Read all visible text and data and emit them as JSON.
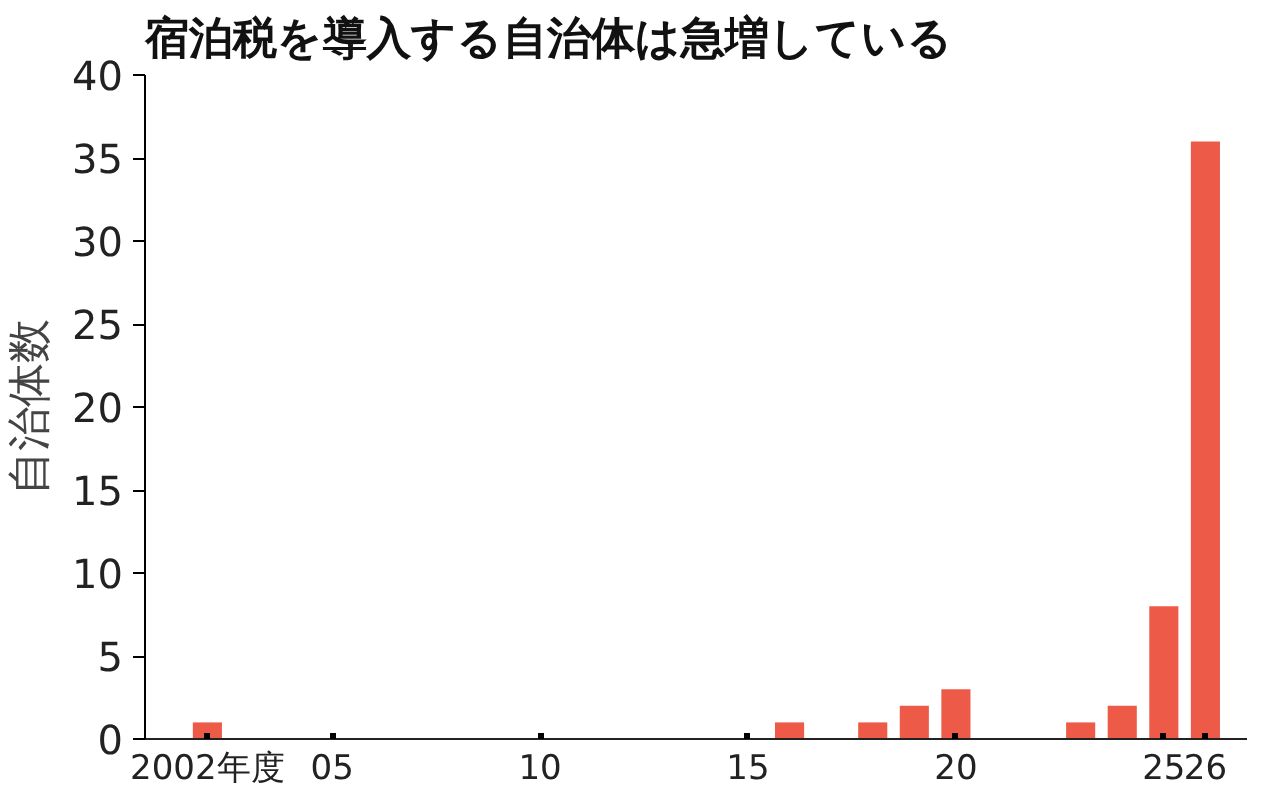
{
  "chart_data": {
    "type": "bar",
    "title": "宿泊税を導入する自治体は急増している",
    "ylabel": "自治体数",
    "x": [
      2002,
      2016,
      2018,
      2019,
      2020,
      2023,
      2024,
      2025,
      2026
    ],
    "values": [
      1,
      1,
      1,
      2,
      3,
      1,
      2,
      8,
      36
    ],
    "color": "#ee5a48",
    "xlim": [
      2000.5,
      2027
    ],
    "xticks": [
      {
        "value": 2002,
        "label": "2002年度"
      },
      {
        "value": 2005,
        "label": "05"
      },
      {
        "value": 2010,
        "label": "10"
      },
      {
        "value": 2015,
        "label": "15"
      },
      {
        "value": 2020,
        "label": "20"
      },
      {
        "value": 2025,
        "label": "25"
      },
      {
        "value": 2026,
        "label": "26"
      }
    ],
    "ylim": [
      0,
      40
    ],
    "yticks": [
      0,
      5,
      10,
      15,
      20,
      25,
      30,
      35,
      40
    ],
    "grid": false
  }
}
